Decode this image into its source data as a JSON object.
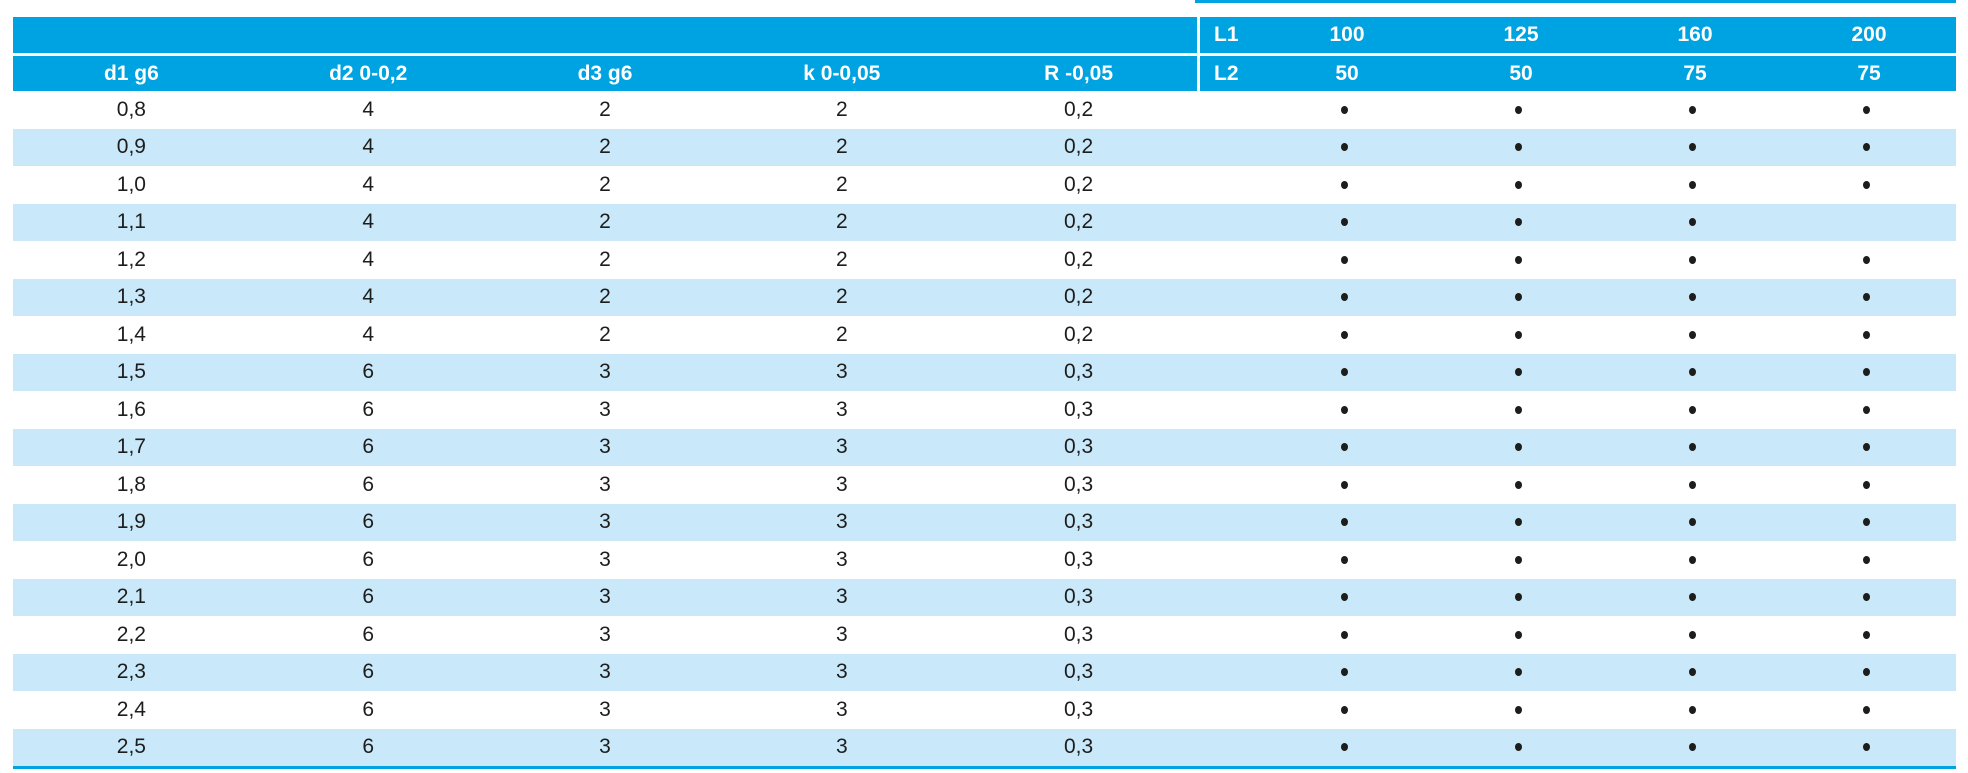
{
  "table": {
    "colors": {
      "header_bg": "#00A3E2",
      "alt_row_bg": "#C9E8FA",
      "header_text": "#FFFFFF",
      "body_text": "#1D1D1B"
    },
    "header": {
      "left_columns": [
        "d1 g6",
        "d2 0-0,2",
        "d3 g6",
        "k 0-0,05",
        "R -0,05"
      ],
      "l1_label": "L1",
      "l2_label": "L2",
      "l1_values": [
        "100",
        "125",
        "160",
        "200"
      ],
      "l2_values": [
        "50",
        "50",
        "75",
        "75"
      ]
    },
    "dot_symbol": "•",
    "rows": [
      {
        "d1": "0,8",
        "d2": "4",
        "d3": "2",
        "k": "2",
        "r": "0,2",
        "avail": [
          true,
          true,
          true,
          true
        ]
      },
      {
        "d1": "0,9",
        "d2": "4",
        "d3": "2",
        "k": "2",
        "r": "0,2",
        "avail": [
          true,
          true,
          true,
          true
        ]
      },
      {
        "d1": "1,0",
        "d2": "4",
        "d3": "2",
        "k": "2",
        "r": "0,2",
        "avail": [
          true,
          true,
          true,
          true
        ]
      },
      {
        "d1": "1,1",
        "d2": "4",
        "d3": "2",
        "k": "2",
        "r": "0,2",
        "avail": [
          true,
          true,
          true,
          false
        ]
      },
      {
        "d1": "1,2",
        "d2": "4",
        "d3": "2",
        "k": "2",
        "r": "0,2",
        "avail": [
          true,
          true,
          true,
          true
        ]
      },
      {
        "d1": "1,3",
        "d2": "4",
        "d3": "2",
        "k": "2",
        "r": "0,2",
        "avail": [
          true,
          true,
          true,
          true
        ]
      },
      {
        "d1": "1,4",
        "d2": "4",
        "d3": "2",
        "k": "2",
        "r": "0,2",
        "avail": [
          true,
          true,
          true,
          true
        ]
      },
      {
        "d1": "1,5",
        "d2": "6",
        "d3": "3",
        "k": "3",
        "r": "0,3",
        "avail": [
          true,
          true,
          true,
          true
        ]
      },
      {
        "d1": "1,6",
        "d2": "6",
        "d3": "3",
        "k": "3",
        "r": "0,3",
        "avail": [
          true,
          true,
          true,
          true
        ]
      },
      {
        "d1": "1,7",
        "d2": "6",
        "d3": "3",
        "k": "3",
        "r": "0,3",
        "avail": [
          true,
          true,
          true,
          true
        ]
      },
      {
        "d1": "1,8",
        "d2": "6",
        "d3": "3",
        "k": "3",
        "r": "0,3",
        "avail": [
          true,
          true,
          true,
          true
        ]
      },
      {
        "d1": "1,9",
        "d2": "6",
        "d3": "3",
        "k": "3",
        "r": "0,3",
        "avail": [
          true,
          true,
          true,
          true
        ]
      },
      {
        "d1": "2,0",
        "d2": "6",
        "d3": "3",
        "k": "3",
        "r": "0,3",
        "avail": [
          true,
          true,
          true,
          true
        ]
      },
      {
        "d1": "2,1",
        "d2": "6",
        "d3": "3",
        "k": "3",
        "r": "0,3",
        "avail": [
          true,
          true,
          true,
          true
        ]
      },
      {
        "d1": "2,2",
        "d2": "6",
        "d3": "3",
        "k": "3",
        "r": "0,3",
        "avail": [
          true,
          true,
          true,
          true
        ]
      },
      {
        "d1": "2,3",
        "d2": "6",
        "d3": "3",
        "k": "3",
        "r": "0,3",
        "avail": [
          true,
          true,
          true,
          true
        ]
      },
      {
        "d1": "2,4",
        "d2": "6",
        "d3": "3",
        "k": "3",
        "r": "0,3",
        "avail": [
          true,
          true,
          true,
          true
        ]
      },
      {
        "d1": "2,5",
        "d2": "6",
        "d3": "3",
        "k": "3",
        "r": "0,3",
        "avail": [
          true,
          true,
          true,
          true
        ]
      }
    ]
  }
}
